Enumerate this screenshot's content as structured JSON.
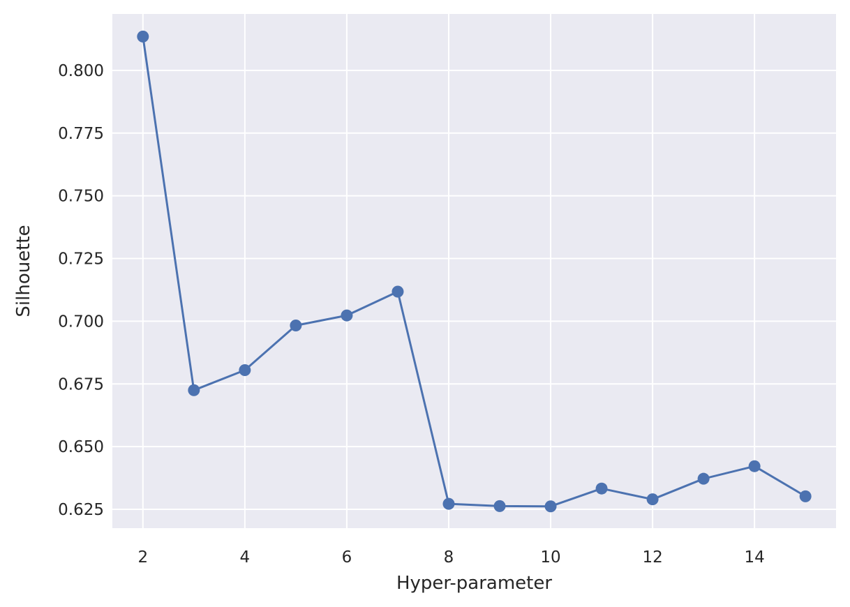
{
  "chart_data": {
    "type": "line",
    "title": "",
    "xlabel": "Hyper-parameter",
    "ylabel": "Silhouette",
    "x": [
      2,
      3,
      4,
      5,
      6,
      7,
      8,
      9,
      10,
      11,
      12,
      13,
      14,
      15
    ],
    "series": [
      {
        "values": [
          0.8135,
          0.6725,
          0.6805,
          0.6983,
          0.7023,
          0.7118,
          0.6272,
          0.6263,
          0.6262,
          0.6333,
          0.629,
          0.6372,
          0.6422,
          0.6302
        ],
        "color": "#4c72b0",
        "marker": "circle"
      }
    ],
    "xlim": [
      1.4,
      15.6
    ],
    "ylim": [
      0.6175,
      0.8225
    ],
    "xticks": [
      2,
      4,
      6,
      8,
      10,
      12,
      14
    ],
    "xtick_labels": [
      "2",
      "4",
      "6",
      "8",
      "10",
      "12",
      "14"
    ],
    "yticks": [
      0.625,
      0.65,
      0.675,
      0.7,
      0.725,
      0.75,
      0.775,
      0.8
    ],
    "ytick_labels": [
      "0.625",
      "0.650",
      "0.675",
      "0.700",
      "0.725",
      "0.750",
      "0.775",
      "0.800"
    ],
    "grid": true,
    "background_color": "#eaeaf2",
    "grid_color": "#ffffff"
  }
}
